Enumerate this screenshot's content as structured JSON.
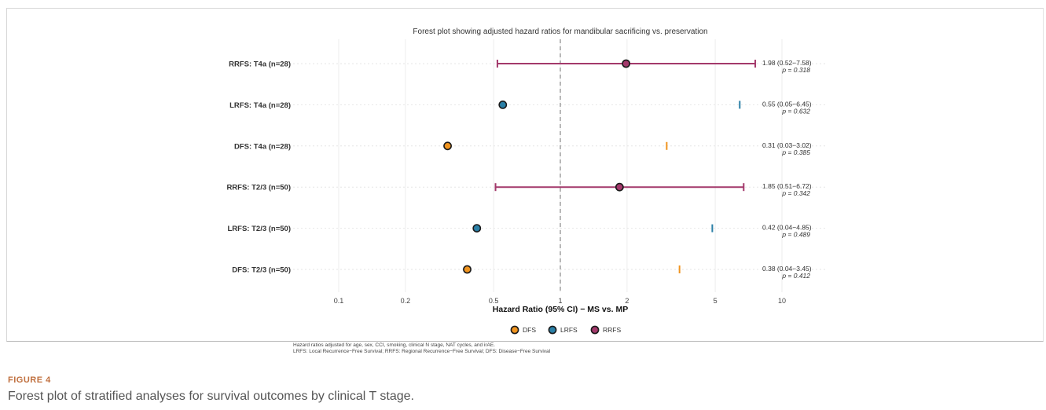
{
  "chart_data": {
    "type": "forest",
    "title": "Forest plot showing adjusted hazard ratios for mandibular sacrificing vs. preservation",
    "xlabel": "Hazard Ratio (95% CI) − MS vs. MP",
    "x_scale": "log",
    "xlim": [
      0.07,
      14
    ],
    "x_ticks": [
      0.1,
      0.2,
      0.5,
      1,
      2,
      5,
      10
    ],
    "x_tick_labels": [
      "0.1",
      "0.2",
      "0.5",
      "1",
      "2",
      "5",
      "10"
    ],
    "reference_line": 1,
    "grid": true,
    "legend_position": "bottom",
    "rows": [
      {
        "label": "RRFS: T4a (n=28)",
        "series": "RRFS",
        "hr": 1.98,
        "lower": 0.52,
        "upper": 7.58,
        "ci_text": "1.98 (0.52−7.58)",
        "p_text": "p = 0.318"
      },
      {
        "label": "LRFS: T4a (n=28)",
        "series": "LRFS",
        "hr": 0.55,
        "lower": 0.05,
        "upper": 6.45,
        "ci_text": "0.55 (0.05−6.45)",
        "p_text": "p = 0.632"
      },
      {
        "label": "DFS: T4a (n=28)",
        "series": "DFS",
        "hr": 0.31,
        "lower": 0.03,
        "upper": 3.02,
        "ci_text": "0.31 (0.03−3.02)",
        "p_text": "p = 0.385"
      },
      {
        "label": "RRFS: T2/3 (n=50)",
        "series": "RRFS",
        "hr": 1.85,
        "lower": 0.51,
        "upper": 6.72,
        "ci_text": "1.85 (0.51−6.72)",
        "p_text": "p = 0.342"
      },
      {
        "label": "LRFS: T2/3 (n=50)",
        "series": "LRFS",
        "hr": 0.42,
        "lower": 0.04,
        "upper": 4.85,
        "ci_text": "0.42 (0.04−4.85)",
        "p_text": "p = 0.489"
      },
      {
        "label": "DFS: T2/3 (n=50)",
        "series": "DFS",
        "hr": 0.38,
        "lower": 0.04,
        "upper": 3.45,
        "ci_text": "0.38 (0.04−3.45)",
        "p_text": "p = 0.412"
      }
    ],
    "legend": [
      {
        "name": "DFS",
        "color": "#f0941f"
      },
      {
        "name": "LRFS",
        "color": "#2a7fa6"
      },
      {
        "name": "RRFS",
        "color": "#a3396b"
      }
    ],
    "footnote_lines": [
      "Hazard ratios adjusted for age, sex, CCI, smoking, clinical N stage, NAT cycles, and irAE.",
      "LRFS: Local Recurrence−Free Survival; RRFS: Regional Recurrence−Free Survival; DFS: Disease−Free Survival"
    ]
  },
  "figure": {
    "label": "FIGURE 4",
    "caption": "Forest plot of stratified analyses for survival outcomes by clinical T stage."
  },
  "colors": {
    "reference_line": "#888888",
    "grid": "#ececec",
    "caption_label": "#c0703f"
  }
}
